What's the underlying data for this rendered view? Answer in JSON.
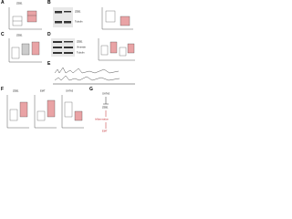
{
  "panels": [
    {
      "label": "A",
      "title": "ZEB1"
    },
    {
      "label": "B",
      "blots": [
        "ZEB1",
        "Tubulin"
      ]
    },
    {
      "label": "C",
      "title": "ZEB1"
    },
    {
      "label": "D",
      "blots": [
        "ZEB1",
        "Vimentin",
        "Tubulin"
      ]
    },
    {
      "label": "E"
    },
    {
      "label": "F",
      "titles": [
        "ZEB1",
        "EMT",
        "GATA3"
      ]
    },
    {
      "label": "G",
      "nodes": [
        "GATA3",
        "ZEB1",
        "Inflammation",
        "EMT"
      ]
    }
  ]
}
